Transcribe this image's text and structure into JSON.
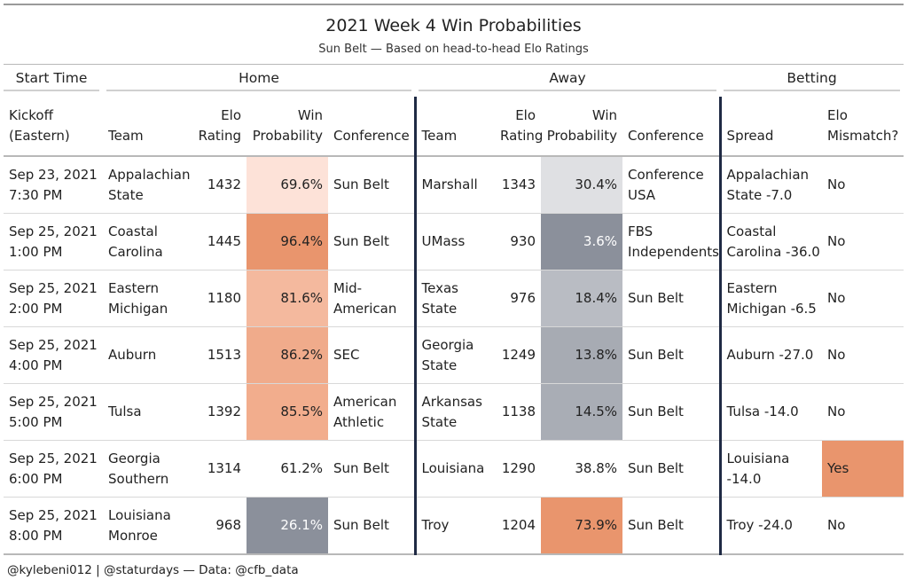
{
  "title": "2021 Week 4 Win Probabilities",
  "subtitle": "Sun Belt — Based on head-to-head Elo Ratings",
  "spanners": {
    "start_time": "Start Time",
    "home": "Home",
    "away": "Away",
    "betting": "Betting"
  },
  "columns": {
    "kickoff": [
      "Kickoff",
      "(Eastern)"
    ],
    "home_team": "Team",
    "home_elo": [
      "Elo",
      "Rating"
    ],
    "home_prob": [
      "Win",
      "Probability"
    ],
    "home_conf": "Conference",
    "away_team": "Team",
    "away_elo": [
      "Elo",
      "Rating"
    ],
    "away_prob": [
      "Win",
      "Probability"
    ],
    "away_conf": "Conference",
    "spread": "Spread",
    "mismatch": [
      "Elo",
      "Mismatch?"
    ]
  },
  "colors": {
    "home_prob_bg": [
      "#fde2d8",
      "#e9956d",
      "#f4b99e",
      "#f0ab8b",
      "#f2ad8d",
      "#ffffff",
      "#8b909b"
    ],
    "away_prob_bg": [
      "#dfe0e3",
      "#8b909b",
      "#b9bcc3",
      "#a7abb3",
      "#a9adb5",
      "#ffffff",
      "#e9956d"
    ],
    "home_prob_fg": [
      "#222222",
      "#222222",
      "#222222",
      "#222222",
      "#222222",
      "#222222",
      "#ffffff"
    ],
    "away_prob_fg": [
      "#222222",
      "#ffffff",
      "#222222",
      "#222222",
      "#222222",
      "#222222",
      "#222222"
    ],
    "mismatch_bg": [
      "#ffffff",
      "#ffffff",
      "#ffffff",
      "#ffffff",
      "#ffffff",
      "#e9956d",
      "#ffffff"
    ],
    "divider": "#1f2a44"
  },
  "rows": [
    {
      "kickoff": [
        "Sep 23, 2021",
        "7:30 PM"
      ],
      "home_team": [
        "Appalachian",
        "State"
      ],
      "home_elo": "1432",
      "home_prob": "69.6%",
      "home_conf": [
        "Sun Belt"
      ],
      "away_team": [
        "Marshall"
      ],
      "away_elo": "1343",
      "away_prob": "30.4%",
      "away_conf": [
        "Conference",
        "USA"
      ],
      "spread": [
        "Appalachian",
        "State -7.0"
      ],
      "mismatch": "No"
    },
    {
      "kickoff": [
        "Sep 25, 2021",
        "1:00 PM"
      ],
      "home_team": [
        "Coastal",
        "Carolina"
      ],
      "home_elo": "1445",
      "home_prob": "96.4%",
      "home_conf": [
        "Sun Belt"
      ],
      "away_team": [
        "UMass"
      ],
      "away_elo": "930",
      "away_prob": "3.6%",
      "away_conf": [
        "FBS",
        "Independents"
      ],
      "spread": [
        "Coastal",
        "Carolina -36.0"
      ],
      "mismatch": "No"
    },
    {
      "kickoff": [
        "Sep 25, 2021",
        "2:00 PM"
      ],
      "home_team": [
        "Eastern",
        "Michigan"
      ],
      "home_elo": "1180",
      "home_prob": "81.6%",
      "home_conf": [
        "Mid-",
        "American"
      ],
      "away_team": [
        "Texas",
        "State"
      ],
      "away_elo": "976",
      "away_prob": "18.4%",
      "away_conf": [
        "Sun Belt"
      ],
      "spread": [
        "Eastern",
        "Michigan -6.5"
      ],
      "mismatch": "No"
    },
    {
      "kickoff": [
        "Sep 25, 2021",
        "4:00 PM"
      ],
      "home_team": [
        "Auburn"
      ],
      "home_elo": "1513",
      "home_prob": "86.2%",
      "home_conf": [
        "SEC"
      ],
      "away_team": [
        "Georgia",
        "State"
      ],
      "away_elo": "1249",
      "away_prob": "13.8%",
      "away_conf": [
        "Sun Belt"
      ],
      "spread": [
        "Auburn -27.0"
      ],
      "mismatch": "No"
    },
    {
      "kickoff": [
        "Sep 25, 2021",
        "5:00 PM"
      ],
      "home_team": [
        "Tulsa"
      ],
      "home_elo": "1392",
      "home_prob": "85.5%",
      "home_conf": [
        "American",
        "Athletic"
      ],
      "away_team": [
        "Arkansas",
        "State"
      ],
      "away_elo": "1138",
      "away_prob": "14.5%",
      "away_conf": [
        "Sun Belt"
      ],
      "spread": [
        "Tulsa -14.0"
      ],
      "mismatch": "No"
    },
    {
      "kickoff": [
        "Sep 25, 2021",
        "6:00 PM"
      ],
      "home_team": [
        "Georgia",
        "Southern"
      ],
      "home_elo": "1314",
      "home_prob": "61.2%",
      "home_conf": [
        "Sun Belt"
      ],
      "away_team": [
        "Louisiana"
      ],
      "away_elo": "1290",
      "away_prob": "38.8%",
      "away_conf": [
        "Sun Belt"
      ],
      "spread": [
        "Louisiana",
        "-14.0"
      ],
      "mismatch": "Yes"
    },
    {
      "kickoff": [
        "Sep 25, 2021",
        "8:00 PM"
      ],
      "home_team": [
        "Louisiana",
        "Monroe"
      ],
      "home_elo": "968",
      "home_prob": "26.1%",
      "home_conf": [
        "Sun Belt"
      ],
      "away_team": [
        "Troy"
      ],
      "away_elo": "1204",
      "away_prob": "73.9%",
      "away_conf": [
        "Sun Belt"
      ],
      "spread": [
        "Troy -24.0"
      ],
      "mismatch": "No"
    }
  ],
  "footer": "@kylebeni012 | @staturdays — Data: @cfb_data"
}
